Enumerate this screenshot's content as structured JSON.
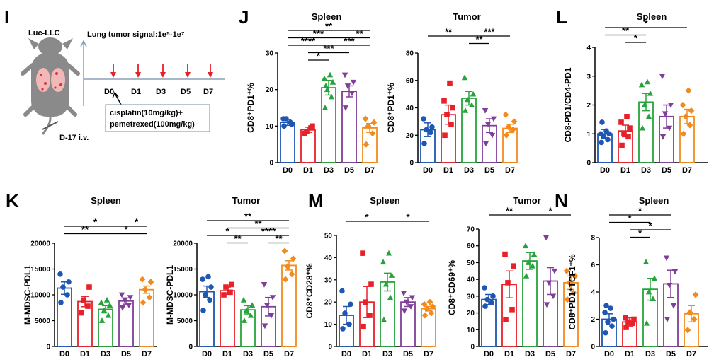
{
  "colors": {
    "D0": "#1f56b3",
    "D1": "#e8202a",
    "D3": "#27a33c",
    "D5": "#7f3f98",
    "D7": "#f28b1d",
    "arrow": "#e8202a",
    "axis": "#8aa0b8"
  },
  "categories": [
    "D0",
    "D1",
    "D3",
    "D5",
    "D7"
  ],
  "panel_labels": [
    "I",
    "J",
    "K",
    "L",
    "M",
    "N"
  ],
  "schematic": {
    "model": "Luc-LLC",
    "signal_label": "Lung tumor signal:1e⁵-1e⁷",
    "injection": "D-17 i.v.",
    "timepoints": [
      "D0",
      "D1",
      "D3",
      "D5",
      "D7"
    ],
    "treatment_line1": "cisplatin(10mg/kg)+",
    "treatment_line2": "pemetrexed(100mg/kg)"
  },
  "chart_data": [
    {
      "id": "J-spleen",
      "panel": "J",
      "type": "bar",
      "title": "Spleen",
      "ylabel": "CD8⁺PD1⁺%",
      "ylim": [
        0,
        30
      ],
      "yticks": [
        "0",
        "10",
        "20",
        "30"
      ],
      "yticks_values": [
        0,
        10,
        20,
        30
      ],
      "categories": [
        "D0",
        "D1",
        "D3",
        "D5",
        "D7"
      ],
      "values": [
        11,
        9,
        20.5,
        19.5,
        9.5
      ],
      "errors": [
        0.8,
        0.7,
        2,
        1.5,
        1.2
      ],
      "points": [
        [
          10,
          11,
          12,
          10.5,
          12
        ],
        [
          8,
          9.5,
          8.5,
          10
        ],
        [
          15,
          18,
          20,
          22,
          23,
          24,
          21
        ],
        [
          15,
          19,
          21,
          22,
          24
        ],
        [
          5,
          8,
          10,
          11,
          12
        ]
      ],
      "brackets": [
        [
          "D0",
          "D3",
          "****"
        ],
        [
          "D0",
          "D5",
          "***"
        ],
        [
          "D0",
          "D7",
          "**"
        ],
        [
          "D1",
          "D3",
          "*"
        ],
        [
          "D1",
          "D5",
          "***"
        ],
        [
          "D3",
          "D7",
          "***"
        ],
        [
          "D5",
          "D7",
          "**"
        ]
      ]
    },
    {
      "id": "J-tumor",
      "panel": "J",
      "type": "bar",
      "title": "Tumor",
      "ylabel": "CD8⁺PD1⁺%",
      "ylim": [
        0,
        80
      ],
      "yticks": [
        "0",
        "20",
        "40",
        "60",
        "80"
      ],
      "yticks_values": [
        0,
        20,
        40,
        60,
        80
      ],
      "categories": [
        "D0",
        "D1",
        "D3",
        "D5",
        "D7"
      ],
      "values": [
        24,
        35,
        47,
        27,
        25
      ],
      "errors": [
        5,
        7,
        5,
        5,
        3
      ],
      "points": [
        [
          14,
          22,
          24,
          26,
          32
        ],
        [
          20,
          28,
          35,
          40,
          45,
          58
        ],
        [
          38,
          42,
          46,
          50,
          62
        ],
        [
          14,
          20,
          28,
          32,
          38
        ],
        [
          20,
          24,
          26,
          30,
          35
        ]
      ],
      "brackets": [
        [
          "D0",
          "D3",
          "**"
        ],
        [
          "D3",
          "D5",
          "**"
        ],
        [
          "D3",
          "D7",
          "***"
        ]
      ]
    },
    {
      "id": "L-spleen",
      "panel": "L",
      "type": "bar",
      "title": "Spleen",
      "ylabel": "CD8-PD1/CD4-PD1",
      "ylim": [
        0,
        4
      ],
      "yticks": [
        "0",
        "1",
        "2",
        "3",
        "4"
      ],
      "yticks_values": [
        0,
        1,
        2,
        3,
        4
      ],
      "categories": [
        "D0",
        "D1",
        "D3",
        "D5",
        "D7"
      ],
      "values": [
        1.0,
        1.1,
        2.1,
        1.6,
        1.6
      ],
      "errors": [
        0.15,
        0.2,
        0.3,
        0.4,
        0.25
      ],
      "points": [
        [
          0.7,
          0.8,
          0.9,
          1.0,
          1.0,
          1.1,
          1.4
        ],
        [
          0.6,
          0.9,
          1.0,
          1.2,
          1.4,
          1.6
        ],
        [
          1.2,
          1.6,
          2.0,
          2.4,
          2.7,
          2.8
        ],
        [
          0.9,
          1.2,
          1.7,
          2.0,
          3.0
        ],
        [
          1.0,
          1.3,
          1.6,
          1.8,
          2.0,
          2.5
        ]
      ],
      "brackets": [
        [
          "D0",
          "D3",
          "**"
        ],
        [
          "D0",
          "D7",
          "*"
        ],
        [
          "D1",
          "D3",
          "*"
        ]
      ]
    },
    {
      "id": "K-spleen",
      "panel": "K",
      "type": "bar",
      "title": "Spleen",
      "ylabel": "M-MDSC-PDL1",
      "ylim": [
        0,
        20000
      ],
      "yticks": [
        "0",
        "5000",
        "10000",
        "15000",
        "20000"
      ],
      "yticks_values": [
        0,
        5000,
        10000,
        15000,
        20000
      ],
      "categories": [
        "D0",
        "D1",
        "D3",
        "D5",
        "D7"
      ],
      "values": [
        11300,
        8700,
        7200,
        8800,
        11000
      ],
      "errors": [
        1200,
        1000,
        700,
        600,
        700
      ],
      "points": [
        [
          8500,
          10000,
          11500,
          12500,
          14000
        ],
        [
          6500,
          7800,
          9000,
          11500
        ],
        [
          5000,
          6000,
          7000,
          8000,
          8500,
          9000
        ],
        [
          7500,
          8000,
          9000,
          9500,
          10000
        ],
        [
          8500,
          9500,
          11000,
          12500,
          13000
        ]
      ],
      "brackets": [
        [
          "D0",
          "D3",
          "**"
        ],
        [
          "D0",
          "D5",
          "*"
        ],
        [
          "D3",
          "D7",
          "*"
        ],
        [
          "D5",
          "D7",
          "*"
        ]
      ]
    },
    {
      "id": "K-tumor",
      "panel": "K",
      "type": "bar",
      "title": "Tumor",
      "ylabel": "M-MDSC-PDL1",
      "ylim": [
        0,
        20000
      ],
      "yticks": [
        "0",
        "5000",
        "10000",
        "15000",
        "20000"
      ],
      "yticks_values": [
        0,
        5000,
        10000,
        15000,
        20000
      ],
      "categories": [
        "D0",
        "D1",
        "D3",
        "D5",
        "D7"
      ],
      "values": [
        10600,
        10800,
        7100,
        7700,
        15700
      ],
      "errors": [
        1100,
        700,
        800,
        1800,
        900
      ],
      "points": [
        [
          7000,
          9000,
          10000,
          11500,
          13000,
          13500
        ],
        [
          10000,
          10500,
          11500,
          12000
        ],
        [
          5000,
          6000,
          7000,
          8000,
          9000
        ],
        [
          4000,
          6000,
          8000,
          9500,
          12000
        ],
        [
          13000,
          14000,
          15500,
          17000,
          18500
        ]
      ],
      "brackets": [
        [
          "D0",
          "D3",
          "*"
        ],
        [
          "D0",
          "D7",
          "**"
        ],
        [
          "D1",
          "D3",
          "**"
        ],
        [
          "D1",
          "D7",
          "**"
        ],
        [
          "D3",
          "D7",
          "****"
        ],
        [
          "D5",
          "D7",
          "**"
        ]
      ]
    },
    {
      "id": "M-spleen",
      "panel": "M",
      "type": "bar",
      "title": "Spleen",
      "ylabel": "CD8⁺CD28⁺%",
      "ylim": [
        0,
        50
      ],
      "yticks": [
        "0",
        "10",
        "20",
        "30",
        "40",
        "50"
      ],
      "yticks_values": [
        0,
        10,
        20,
        30,
        40,
        50
      ],
      "categories": [
        "D0",
        "D1",
        "D3",
        "D5",
        "D7"
      ],
      "values": [
        14,
        20,
        29,
        20,
        17
      ],
      "errors": [
        4,
        7,
        4,
        2,
        1
      ],
      "points": [
        [
          8,
          10,
          15,
          19,
          25
        ],
        [
          9,
          14,
          20,
          28,
          42
        ],
        [
          12,
          22,
          28,
          32,
          38,
          42
        ],
        [
          16,
          18,
          20,
          22,
          24
        ],
        [
          14,
          15,
          17,
          18,
          19,
          20
        ]
      ],
      "brackets": [
        [
          "D0",
          "D3",
          "*"
        ],
        [
          "D3",
          "D7",
          "*"
        ]
      ]
    },
    {
      "id": "M-tumor",
      "panel": "M",
      "type": "bar",
      "title": "Tumor",
      "ylabel": "CD8⁺CD69⁺%",
      "ylim": [
        0,
        70
      ],
      "yticks": [
        "0",
        "10",
        "20",
        "30",
        "40",
        "50",
        "60",
        "70"
      ],
      "yticks_values": [
        0,
        10,
        20,
        30,
        40,
        50,
        60,
        70
      ],
      "categories": [
        "D0",
        "D1",
        "D3",
        "D5",
        "D7"
      ],
      "values": [
        28,
        37,
        51,
        39,
        38
      ],
      "errors": [
        3,
        8,
        5,
        8,
        4
      ],
      "points": [
        [
          24,
          26,
          28,
          30,
          35
        ],
        [
          16,
          22,
          38,
          48,
          55
        ],
        [
          42,
          48,
          50,
          55,
          60
        ],
        [
          25,
          30,
          38,
          45,
          65
        ],
        [
          28,
          32,
          38,
          42,
          45
        ]
      ],
      "brackets": [
        [
          "D0",
          "D3",
          "**"
        ],
        [
          "D3",
          "D7",
          "*"
        ]
      ]
    },
    {
      "id": "N-spleen",
      "panel": "N",
      "type": "bar",
      "title": "Spleen",
      "ylabel": "CD8⁺PD1⁺TCF1⁺%",
      "ylim": [
        0,
        8
      ],
      "yticks": [
        "0",
        "2",
        "4",
        "6",
        "8"
      ],
      "yticks_values": [
        0,
        2,
        4,
        6,
        8
      ],
      "categories": [
        "D0",
        "D1",
        "D3",
        "D5",
        "D7"
      ],
      "values": [
        2.0,
        1.8,
        4.2,
        4.6,
        2.4
      ],
      "errors": [
        0.4,
        0.3,
        0.8,
        1.0,
        0.6
      ],
      "points": [
        [
          1.0,
          1.5,
          1.8,
          2.0,
          2.5,
          2.8,
          3.0
        ],
        [
          1.4,
          1.7,
          1.8,
          2.0,
          2.1
        ],
        [
          1.7,
          3.5,
          4.0,
          5.0,
          6.2
        ],
        [
          2.0,
          3.0,
          4.5,
          5.5,
          6.5
        ],
        [
          1.2,
          2.0,
          2.5,
          3.8
        ]
      ],
      "brackets": [
        [
          "D0",
          "D3",
          "*"
        ],
        [
          "D0",
          "D5",
          "*"
        ],
        [
          "D1",
          "D3",
          "*"
        ],
        [
          "D1",
          "D5",
          "*"
        ]
      ]
    }
  ]
}
